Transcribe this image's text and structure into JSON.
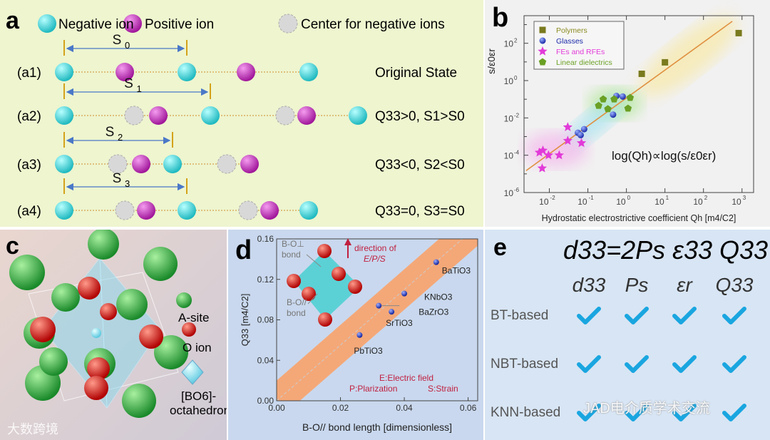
{
  "panel_a": {
    "label": "a",
    "legend": [
      "Negative ion",
      "Positive ion",
      "Center for negative ions"
    ],
    "rows": [
      {
        "id": "(a1)",
        "spacing": "S",
        "sub": "0",
        "desc": "Original State"
      },
      {
        "id": "(a2)",
        "spacing": "S",
        "sub": "1",
        "desc": "Q33>0, S1>S0"
      },
      {
        "id": "(a3)",
        "spacing": "S",
        "sub": "2",
        "desc": "Q33<0, S2<S0"
      },
      {
        "id": "(a4)",
        "spacing": "S",
        "sub": "3",
        "desc": "Q33=0, S3=S0"
      }
    ],
    "colors": {
      "negative": "#1fb9c0",
      "positive": "#a0169a",
      "center": "#cccccc"
    }
  },
  "chart_data": [
    {
      "type": "scatter",
      "panel": "b",
      "xlabel": "Hydrostatic electrostrictive coefficient Qh [m4/C2]",
      "ylabel": "s/ε0εr",
      "xscale": "log",
      "yscale": "log",
      "xlim": [
        0.0022,
        2000
      ],
      "ylim": [
        1e-06,
        3000
      ],
      "xticks": [
        "10-2",
        "10-1",
        "100",
        "101",
        "102",
        "103"
      ],
      "yticks": [
        "102",
        "100",
        "10-2",
        "10-4",
        "10-6"
      ],
      "legend_position": "top-left",
      "annotation": "log(Qh)∝log(s/ε0εr)",
      "series": [
        {
          "name": "Polymers",
          "color": "#7a7a1e",
          "marker": "square",
          "points": [
            [
              2.5,
              2.3
            ],
            [
              10,
              9.5
            ],
            [
              820,
              350
            ]
          ]
        },
        {
          "name": "Glasses",
          "color": "#1a2aa8",
          "marker": "circle",
          "points": [
            [
              0.055,
              0.0016
            ],
            [
              0.065,
              0.0012
            ],
            [
              0.08,
              0.0025
            ],
            [
              0.55,
              0.15
            ],
            [
              0.8,
              0.14
            ],
            [
              0.45,
              0.015
            ]
          ]
        },
        {
          "name": "FEs and RFEs",
          "color": "#e23ad8",
          "marker": "star",
          "points": [
            [
              0.0055,
              0.00014
            ],
            [
              0.0068,
              0.00018
            ],
            [
              0.0095,
              0.0001
            ],
            [
              0.018,
              0.0001
            ],
            [
              0.0065,
              2e-05
            ],
            [
              0.03,
              0.0006
            ],
            [
              0.03,
              0.0032
            ],
            [
              0.068,
              0.00045
            ]
          ]
        },
        {
          "name": "Linear dielectrics",
          "color": "#6aa024",
          "marker": "pentagon",
          "points": [
            [
              0.19,
              0.045
            ],
            [
              0.25,
              0.1
            ],
            [
              0.33,
              0.03
            ],
            [
              0.48,
              0.1
            ],
            [
              1.25,
              0.12
            ],
            [
              1.1,
              0.032
            ]
          ]
        }
      ],
      "fit_line": [
        [
          0.0025,
          1.5e-05
        ],
        [
          560,
          1500
        ]
      ]
    },
    {
      "type": "scatter",
      "panel": "d",
      "xlabel": "B-O// bond length [dimensionless]",
      "ylabel": "Q33 [m4/C2]",
      "xlim": [
        0,
        0.063
      ],
      "ylim": [
        0,
        0.16
      ],
      "xticks": [
        "0.00",
        "0.02",
        "0.04",
        "0.06"
      ],
      "yticks": [
        "0.00",
        "0.04",
        "0.08",
        "0.12",
        "0.16"
      ],
      "points": [
        {
          "name": "BaTiO3",
          "x": 0.05,
          "y": 0.137
        },
        {
          "name": "KNbO3",
          "x": 0.04,
          "y": 0.106
        },
        {
          "name": "BaZrO3",
          "x": 0.032,
          "y": 0.094
        },
        {
          "name": "SrTiO3",
          "x": 0.036,
          "y": 0.088
        },
        {
          "name": "PbTiO3",
          "x": 0.026,
          "y": 0.065
        }
      ],
      "band": {
        "slope": 2.75,
        "half_width": 0.02
      },
      "annotations": [
        "direction of",
        "E/P/S",
        "B-O⊥",
        "bond",
        "B-O//",
        "bond",
        "E:Electric field",
        "P:Plarization",
        "S:Strain"
      ]
    }
  ],
  "panel_b": {
    "label": "b"
  },
  "panel_c": {
    "label": "c",
    "legend": [
      "A-site",
      "O ion",
      "[BO6]-",
      "octahedron"
    ]
  },
  "panel_d": {
    "label": "d"
  },
  "panel_e": {
    "label": "e",
    "formula": "d33=2Ps ε33 Q33",
    "columns": [
      "d33",
      "Ps",
      "εr",
      "Q33"
    ],
    "rows": [
      "BT-based",
      "NBT-based",
      "KNN-based"
    ],
    "check_color": "#1aa6e0"
  },
  "watermarks": [
    "JAD电介质学术交流",
    "大数跨境"
  ]
}
